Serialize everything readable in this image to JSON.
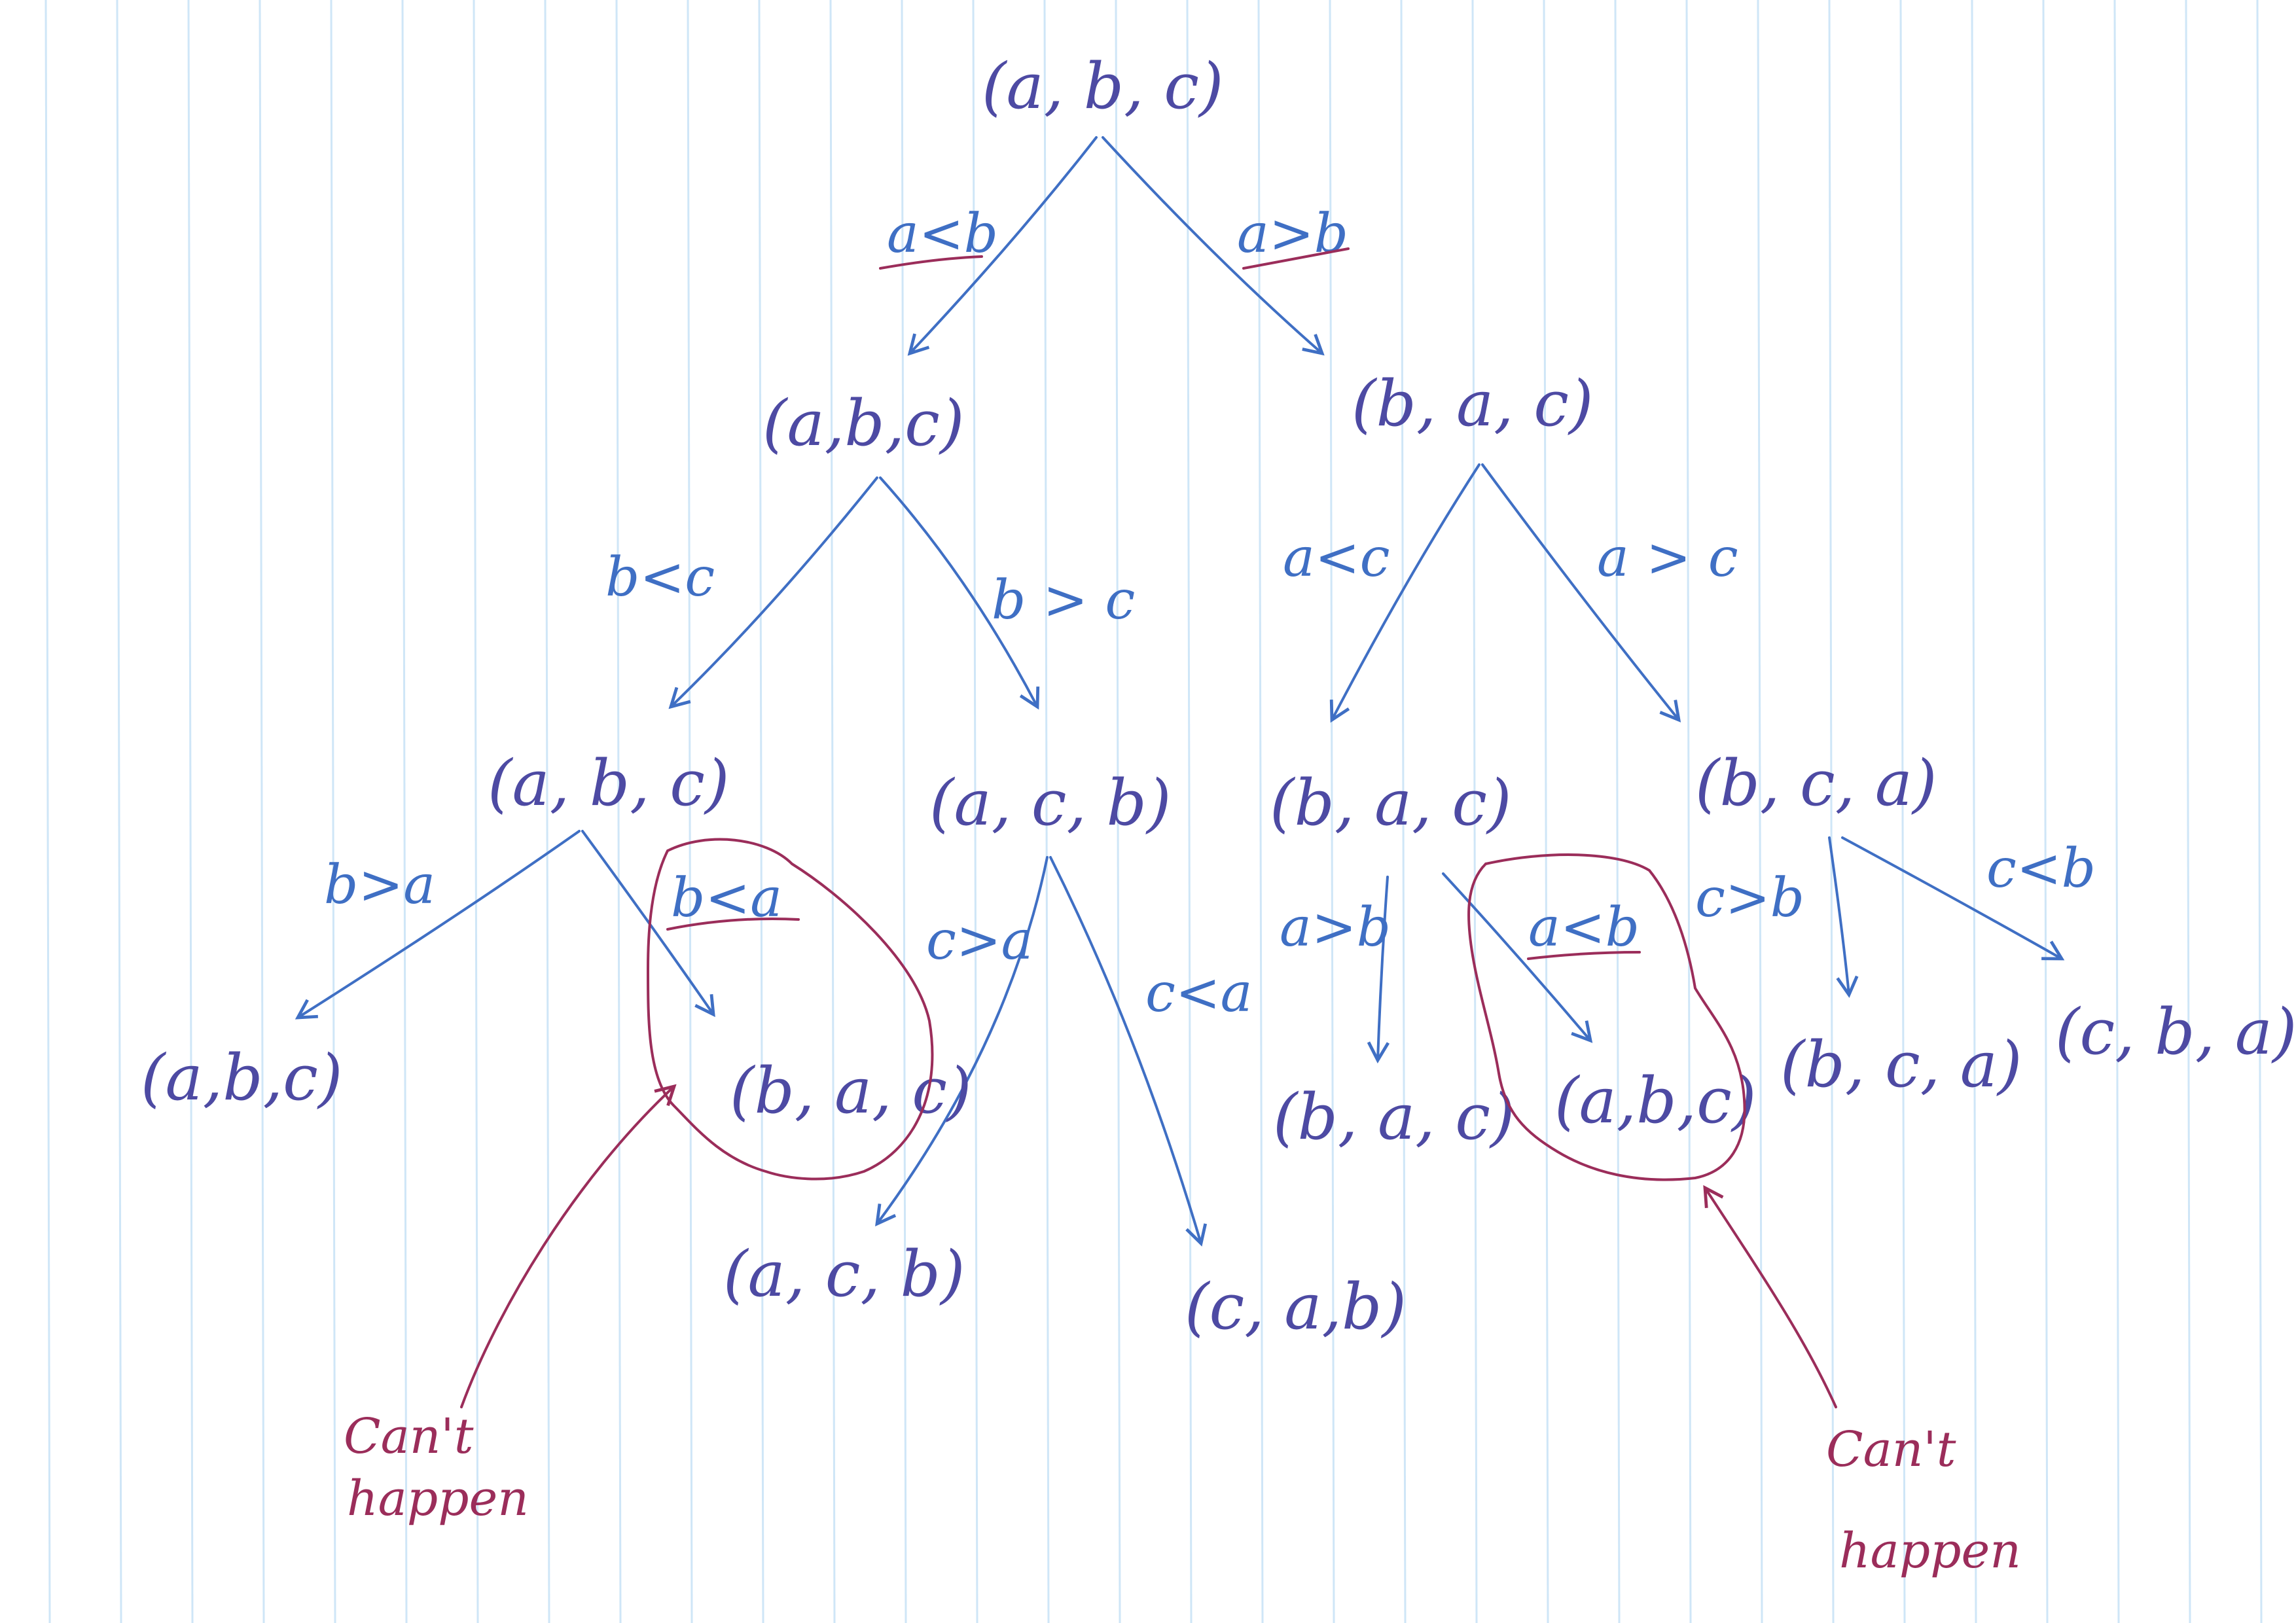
{
  "colors": {
    "paper": "#ffffff",
    "rule_line": "#cfe6f7",
    "tree_ink": "#3f6fc4",
    "node_ink": "#4d4aa3",
    "annotation_ink": "#9b2d5a"
  },
  "diagram": {
    "root": {
      "label": "(a, b, c)"
    },
    "level1": {
      "left": {
        "condition": "a<b",
        "label": "(a,b,c)"
      },
      "right": {
        "condition": "a>b",
        "label": "(b, a, c)"
      }
    },
    "level2": {
      "ll": {
        "condition": "b<c",
        "label": "(a, b, c)"
      },
      "lr": {
        "condition": "b > c",
        "label": "(a, c, b)"
      },
      "rl": {
        "condition": "a<c",
        "label": "(b, a, c)"
      },
      "rr": {
        "condition": "a > c",
        "label": "(b, c, a)"
      }
    },
    "leaves": {
      "ll_left": {
        "condition": "b>a",
        "label": "(a,b,c)"
      },
      "ll_right": {
        "condition": "b<a",
        "label": "(b, a, c)",
        "impossible": true
      },
      "lr_left": {
        "condition": "c>a",
        "label": "(a, c, b)"
      },
      "lr_right": {
        "condition": "c<a",
        "label": "(c, a,b)"
      },
      "rl_left": {
        "condition": "a>b",
        "label": "(b, a, c)"
      },
      "rl_right": {
        "condition": "a<b",
        "label": "(a,b,c)",
        "impossible": true
      },
      "rr_left": {
        "condition": "c>b",
        "label": "(b, c, a)"
      },
      "rr_right": {
        "condition": "c<b",
        "label": "(c, b, a)"
      }
    },
    "annotations": {
      "left_note": {
        "line1": "Can't",
        "line2": "happen"
      },
      "right_note": {
        "line1": "Can't",
        "line2": "happen"
      }
    }
  }
}
